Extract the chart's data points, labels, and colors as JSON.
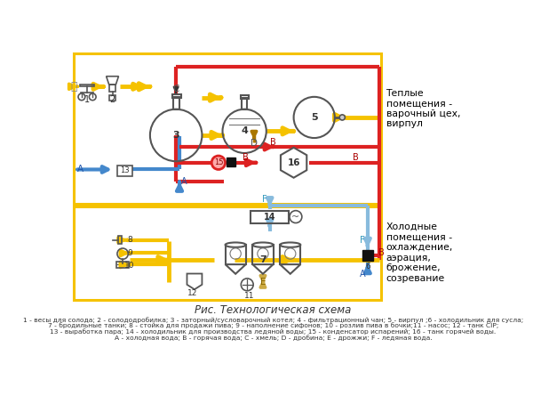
{
  "title": "Рис. Технологическая схема",
  "caption_line1": "1 - весы для солода; 2 - солододробилка; 3 - заторный/сусловарочный котел; 4 - фильтрационный чан; 5 - вирпул ;6 - холодильник для сусла;",
  "caption_line2": "7 - бродильные танки; 8 - стойка для продажи пива; 9 - наполнение сифонов; 10 - розлив пива в бочки;11 - насос; 12 - танк CIP;",
  "caption_line3": "13 - выработка пара; 14 - холодильник для производства ледяной воды; 15 - конденсатор испарений; 16 - танк горячей воды.",
  "caption_line4": "А - холодная вода; В - горячая вода; С - хмель; D - дробина; Е - дрожжи; F - ледяная вода.",
  "label_warm": "Теплые\nпомещения -\nварочный цех,\nвирпул",
  "label_cold": "Холодные\nпомещения -\nохлаждение,\nаэрация,\nброжение,\nсозревание",
  "COLD": "#4488CC",
  "HOT": "#DD2222",
  "YEL": "#F5C200",
  "BRN": "#AA7700",
  "ICE": "#88BBDD",
  "GOLD": "#F5C200",
  "LW_PIPE": 3.0,
  "LW_BORDER": 2.0
}
